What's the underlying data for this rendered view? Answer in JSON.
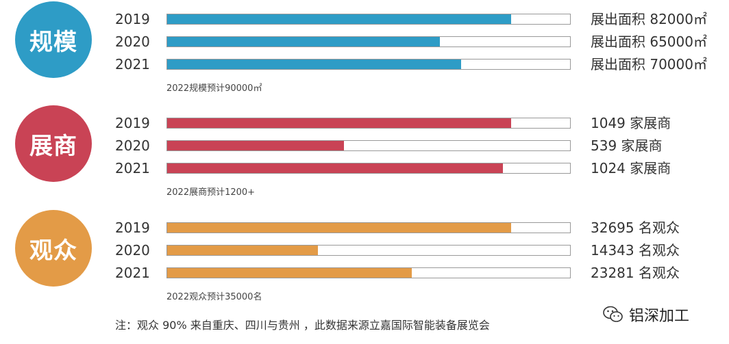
{
  "chart_data": [
    {
      "type": "bar",
      "label": "规模",
      "color": "#2e9cc6",
      "categories": [
        "2019",
        "2020",
        "2021"
      ],
      "values": [
        82000,
        65000,
        70000
      ],
      "value_labels": [
        "展出面积 82000㎡",
        "展出面积 65000㎡",
        "展出面积 70000㎡"
      ],
      "xlim": [
        0,
        96000
      ],
      "note": "2022规模预计90000㎡"
    },
    {
      "type": "bar",
      "label": "展商",
      "color": "#c94355",
      "categories": [
        "2019",
        "2020",
        "2021"
      ],
      "values": [
        1049,
        539,
        1024
      ],
      "value_labels": [
        "1049 家展商",
        "539 家展商",
        "1024 家展商"
      ],
      "xlim": [
        0,
        1228
      ],
      "note": "2022展商预计1200+"
    },
    {
      "type": "bar",
      "label": "观众",
      "color": "#e39b47",
      "categories": [
        "2019",
        "2020",
        "2021"
      ],
      "values": [
        32695,
        14343,
        23281
      ],
      "value_labels": [
        "32695 名观众",
        "14343 名观众",
        "23281 名观众"
      ],
      "xlim": [
        0,
        38300
      ],
      "note": "2022观众预计35000名"
    }
  ],
  "footnote": "注：观众 90% 来自重庆、四川与贵州 ，此数据来源立嘉国际智能装备展览会",
  "watermark": {
    "icon": "wechat-icon",
    "text": "铝深加工"
  }
}
